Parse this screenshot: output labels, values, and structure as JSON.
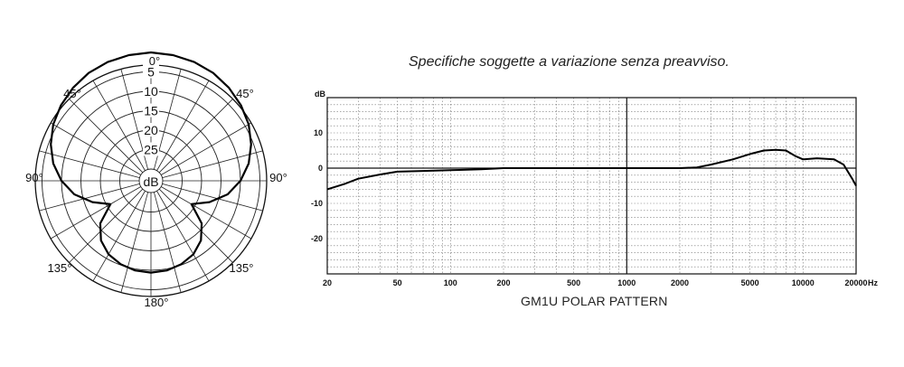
{
  "note": "Specifiche soggette a variazione senza preavviso.",
  "caption": "GM1U POLAR PATTERN",
  "chart_data": [
    {
      "type": "polar",
      "angle_labels": [
        {
          "deg": 0,
          "text": "0°"
        },
        {
          "deg": 45,
          "text": "45°"
        },
        {
          "deg": -45,
          "text": "45°"
        },
        {
          "deg": 90,
          "text": "90°"
        },
        {
          "deg": -90,
          "text": "90°"
        },
        {
          "deg": 135,
          "text": "135°"
        },
        {
          "deg": -135,
          "text": "135°"
        },
        {
          "deg": 180,
          "text": "180°"
        }
      ],
      "ring_labels": [
        "5",
        "10",
        "15",
        "20",
        "25"
      ],
      "center_label": "dB",
      "rmax_db": 30,
      "pattern": {
        "angles_deg": [
          0,
          10,
          20,
          30,
          40,
          50,
          60,
          70,
          80,
          90,
          100,
          110,
          120,
          130,
          140,
          150,
          160,
          170,
          180
        ],
        "level_db": [
          0,
          0.2,
          0.5,
          1.0,
          1.8,
          2.8,
          4.0,
          5.6,
          7.5,
          10.0,
          13.0,
          17.0,
          21.0,
          16.0,
          13.0,
          11.2,
          10.2,
          9.6,
          9.4
        ]
      }
    },
    {
      "type": "line",
      "ylabel": "dB",
      "xunit": "Hz",
      "xscale": "log",
      "xlim": [
        20,
        20000
      ],
      "ylim": [
        -30,
        20
      ],
      "x_ticks": [
        {
          "v": 20,
          "t": "20"
        },
        {
          "v": 50,
          "t": "50"
        },
        {
          "v": 100,
          "t": "100"
        },
        {
          "v": 200,
          "t": "200"
        },
        {
          "v": 500,
          "t": "500"
        },
        {
          "v": 1000,
          "t": "1000"
        },
        {
          "v": 2000,
          "t": "2000"
        },
        {
          "v": 5000,
          "t": "5000"
        },
        {
          "v": 10000,
          "t": "10000"
        },
        {
          "v": 20000,
          "t": "20000"
        }
      ],
      "y_ticks": [
        {
          "v": 10,
          "t": "10"
        },
        {
          "v": 0,
          "t": "0"
        },
        {
          "v": -10,
          "t": "-10"
        },
        {
          "v": -20,
          "t": "-20"
        }
      ],
      "grid": true,
      "x": [
        20,
        25,
        30,
        40,
        50,
        70,
        100,
        150,
        200,
        500,
        1000,
        2000,
        2500,
        3000,
        4000,
        5000,
        6000,
        7000,
        8000,
        9000,
        10000,
        12000,
        15000,
        17000,
        19000,
        20000
      ],
      "y": [
        -6,
        -4.5,
        -3,
        -1.8,
        -1,
        -0.8,
        -0.6,
        -0.3,
        0,
        0,
        0,
        0,
        0.2,
        1,
        2.5,
        4,
        5,
        5.2,
        5,
        3.5,
        2.5,
        2.8,
        2.5,
        1,
        -3,
        -5
      ]
    }
  ]
}
